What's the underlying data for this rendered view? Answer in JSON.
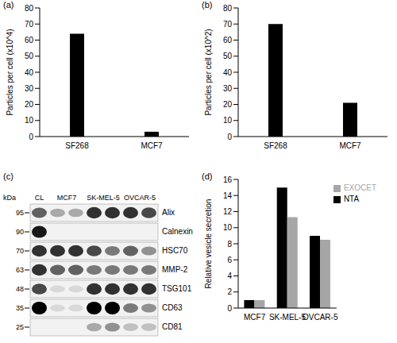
{
  "chart_data": [
    {
      "type": "bar",
      "title": "(a)",
      "categories": [
        "SF268",
        "MCF7"
      ],
      "values": [
        64,
        3
      ],
      "color": "#000000",
      "y_label": "Particles per cell (x10^4)",
      "ylim": [
        0,
        80
      ],
      "yticks": [
        0,
        10,
        20,
        30,
        40,
        50,
        60,
        70,
        80
      ],
      "grid": false
    },
    {
      "type": "bar",
      "title": "(b)",
      "categories": [
        "SF268",
        "MCF7"
      ],
      "values": [
        70,
        21
      ],
      "color": "#000000",
      "y_label": "Particles per cell (x10^2)",
      "ylim": [
        0,
        80
      ],
      "yticks": [
        0,
        10,
        20,
        30,
        40,
        50,
        60,
        70,
        80
      ],
      "grid": false
    },
    {
      "type": "blot",
      "title": "(c)",
      "unit_label": "kDa",
      "lane_groups": [
        {
          "label": "CL",
          "lanes": 1
        },
        {
          "label": "MCF7",
          "lanes": 2
        },
        {
          "label": "SK-MEL-5",
          "lanes": 2
        },
        {
          "label": "OVCAR-5",
          "lanes": 2
        }
      ],
      "rows": [
        {
          "label": "Alix",
          "kda": 95,
          "bands": [
            0.6,
            0.3,
            0.3,
            0.8,
            0.8,
            0.8,
            0.7
          ]
        },
        {
          "label": "Calnexin",
          "kda": 90,
          "bands": [
            0.9,
            0,
            0,
            0,
            0,
            0,
            0
          ]
        },
        {
          "label": "HSC70",
          "kda": 70,
          "bands": [
            0.8,
            0.8,
            0.8,
            0.7,
            0.5,
            0.6,
            0.4
          ]
        },
        {
          "label": "MMP-2",
          "kda": 63,
          "bands": [
            0.8,
            0.6,
            0.6,
            0.5,
            0.5,
            0.5,
            0.5
          ]
        },
        {
          "label": "TSG101",
          "kda": 48,
          "bands": [
            0.7,
            0.1,
            0.1,
            0.8,
            0.8,
            0.8,
            0.8
          ]
        },
        {
          "label": "CD63",
          "kda": 35,
          "bands": [
            1,
            0.1,
            0.1,
            1,
            1,
            0.5,
            0.4
          ]
        },
        {
          "label": "CD81",
          "kda": 25,
          "bands": [
            0,
            0,
            0,
            0.3,
            0.4,
            0.2,
            0.2
          ]
        }
      ]
    },
    {
      "type": "bar",
      "title": "(d)",
      "categories": [
        "MCF7",
        "SK-MEL-5",
        "OVCAR-5"
      ],
      "series": [
        {
          "name": "NTA",
          "color": "#000000",
          "values": [
            1,
            15,
            9
          ]
        },
        {
          "name": "EXOCET",
          "color": "#a6a6a6",
          "values": [
            1,
            11.3,
            8.5
          ]
        }
      ],
      "y_label": "Relative vesicle secretion",
      "ylim": [
        0,
        16
      ],
      "yticks": [
        0,
        2,
        4,
        6,
        8,
        10,
        12,
        14,
        16
      ],
      "grid": false,
      "legend": "top-right"
    }
  ]
}
